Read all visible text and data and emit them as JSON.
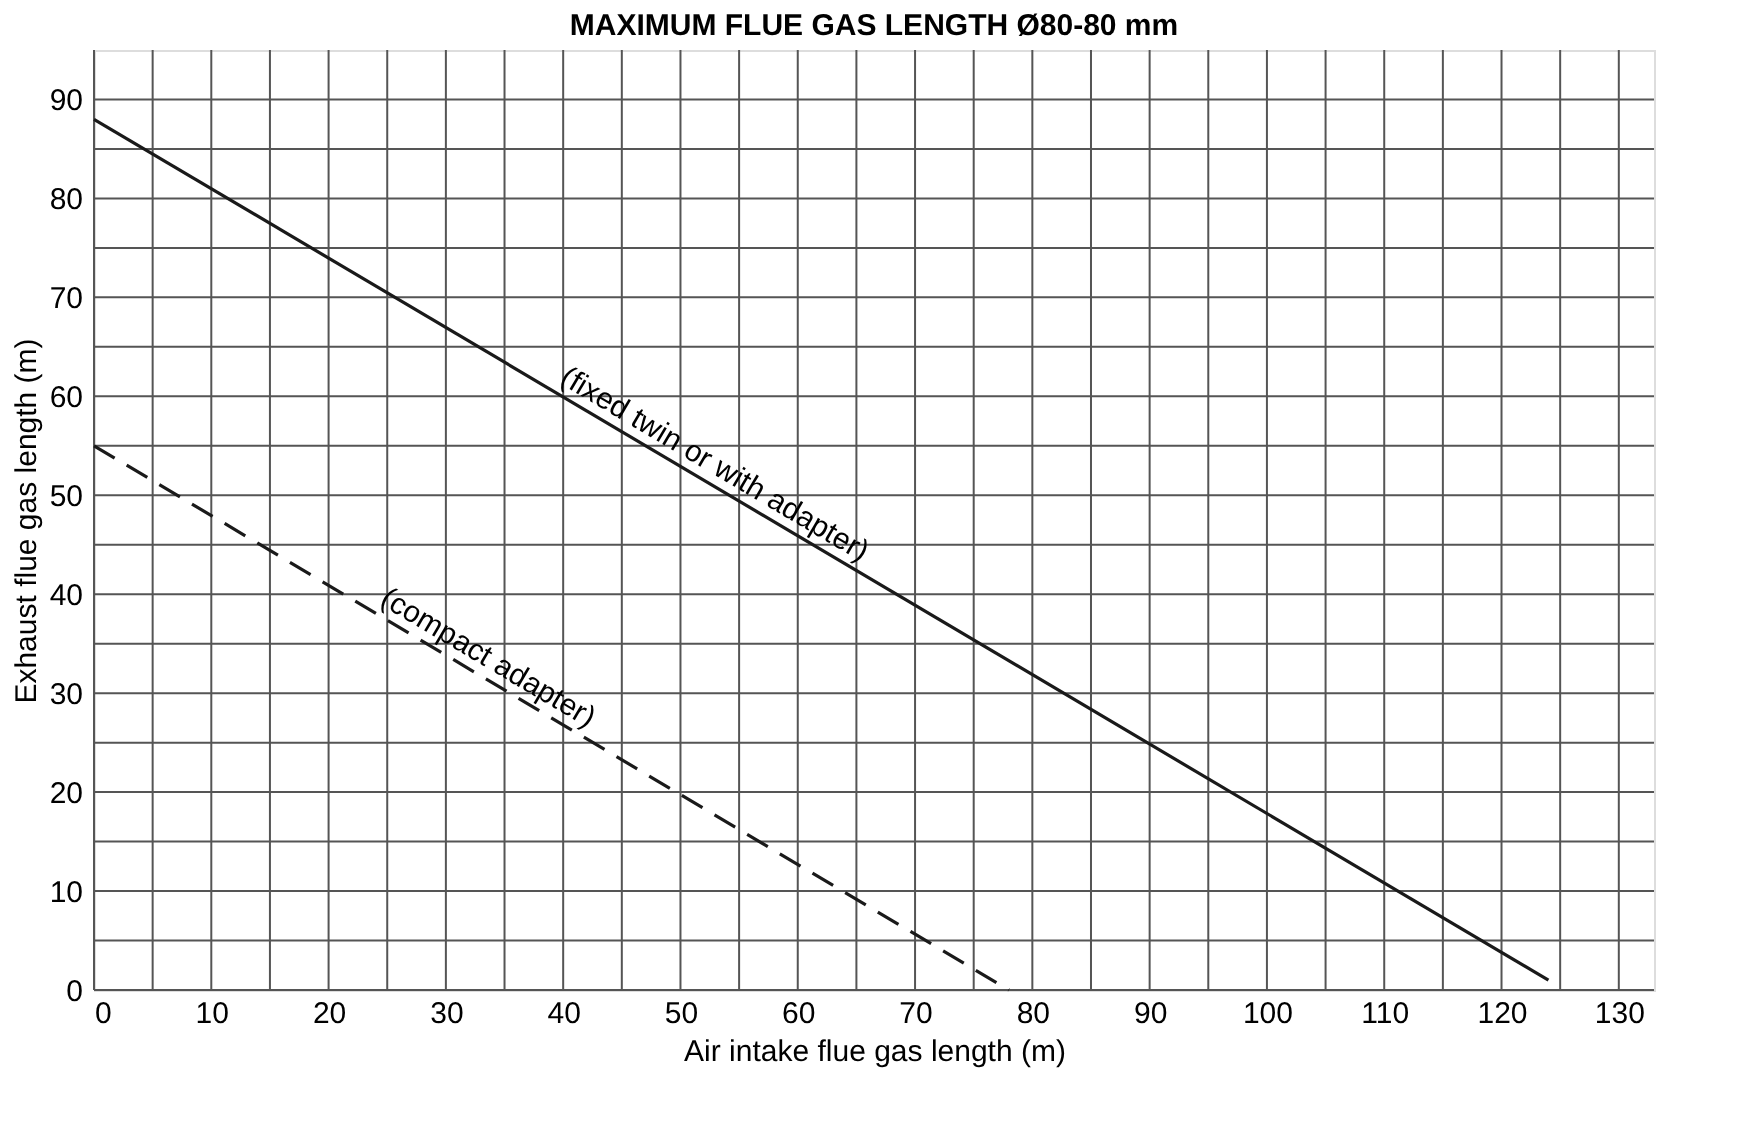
{
  "chart_data": {
    "type": "line",
    "title": "MAXIMUM FLUE GAS LENGTH Ø80-80 mm",
    "xlabel": "Air intake flue gas length (m)",
    "ylabel": "Exhaust flue gas length (m)",
    "xlim": [
      0,
      133
    ],
    "ylim": [
      0,
      95
    ],
    "xticks": [
      0,
      {
        "value": 5,
        "label": null
      },
      10,
      {
        "value": 15,
        "label": null
      },
      20,
      {
        "value": 25,
        "label": null
      },
      30,
      {
        "value": 35,
        "label": null
      },
      40,
      {
        "value": 45,
        "label": null
      },
      50,
      {
        "value": 55,
        "label": null
      },
      60,
      {
        "value": 65,
        "label": null
      },
      70,
      {
        "value": 75,
        "label": null
      },
      80,
      {
        "value": 85,
        "label": null
      },
      90,
      {
        "value": 95,
        "label": null
      },
      100,
      {
        "value": 105,
        "label": null
      },
      110,
      {
        "value": 115,
        "label": null
      },
      120,
      {
        "value": 125,
        "label": null
      },
      130
    ],
    "yticks": [
      0,
      {
        "value": 5,
        "label": null
      },
      10,
      {
        "value": 15,
        "label": null
      },
      20,
      {
        "value": 25,
        "label": null
      },
      30,
      {
        "value": 35,
        "label": null
      },
      40,
      {
        "value": 45,
        "label": null
      },
      50,
      {
        "value": 55,
        "label": null
      },
      60,
      {
        "value": 65,
        "label": null
      },
      70,
      {
        "value": 75,
        "label": null
      },
      80,
      {
        "value": 85,
        "label": null
      },
      90
    ],
    "grid": true,
    "series": [
      {
        "name": "(fixed twin or with adapter)",
        "color": "#1a1a1a",
        "line_style": "solid",
        "x": [
          0,
          124
        ],
        "values": [
          88,
          1
        ]
      },
      {
        "name": "(compact adapter)",
        "color": "#1a1a1a",
        "line_style": "dashed",
        "x": [
          0,
          78
        ],
        "values": [
          55,
          0
        ]
      }
    ]
  }
}
